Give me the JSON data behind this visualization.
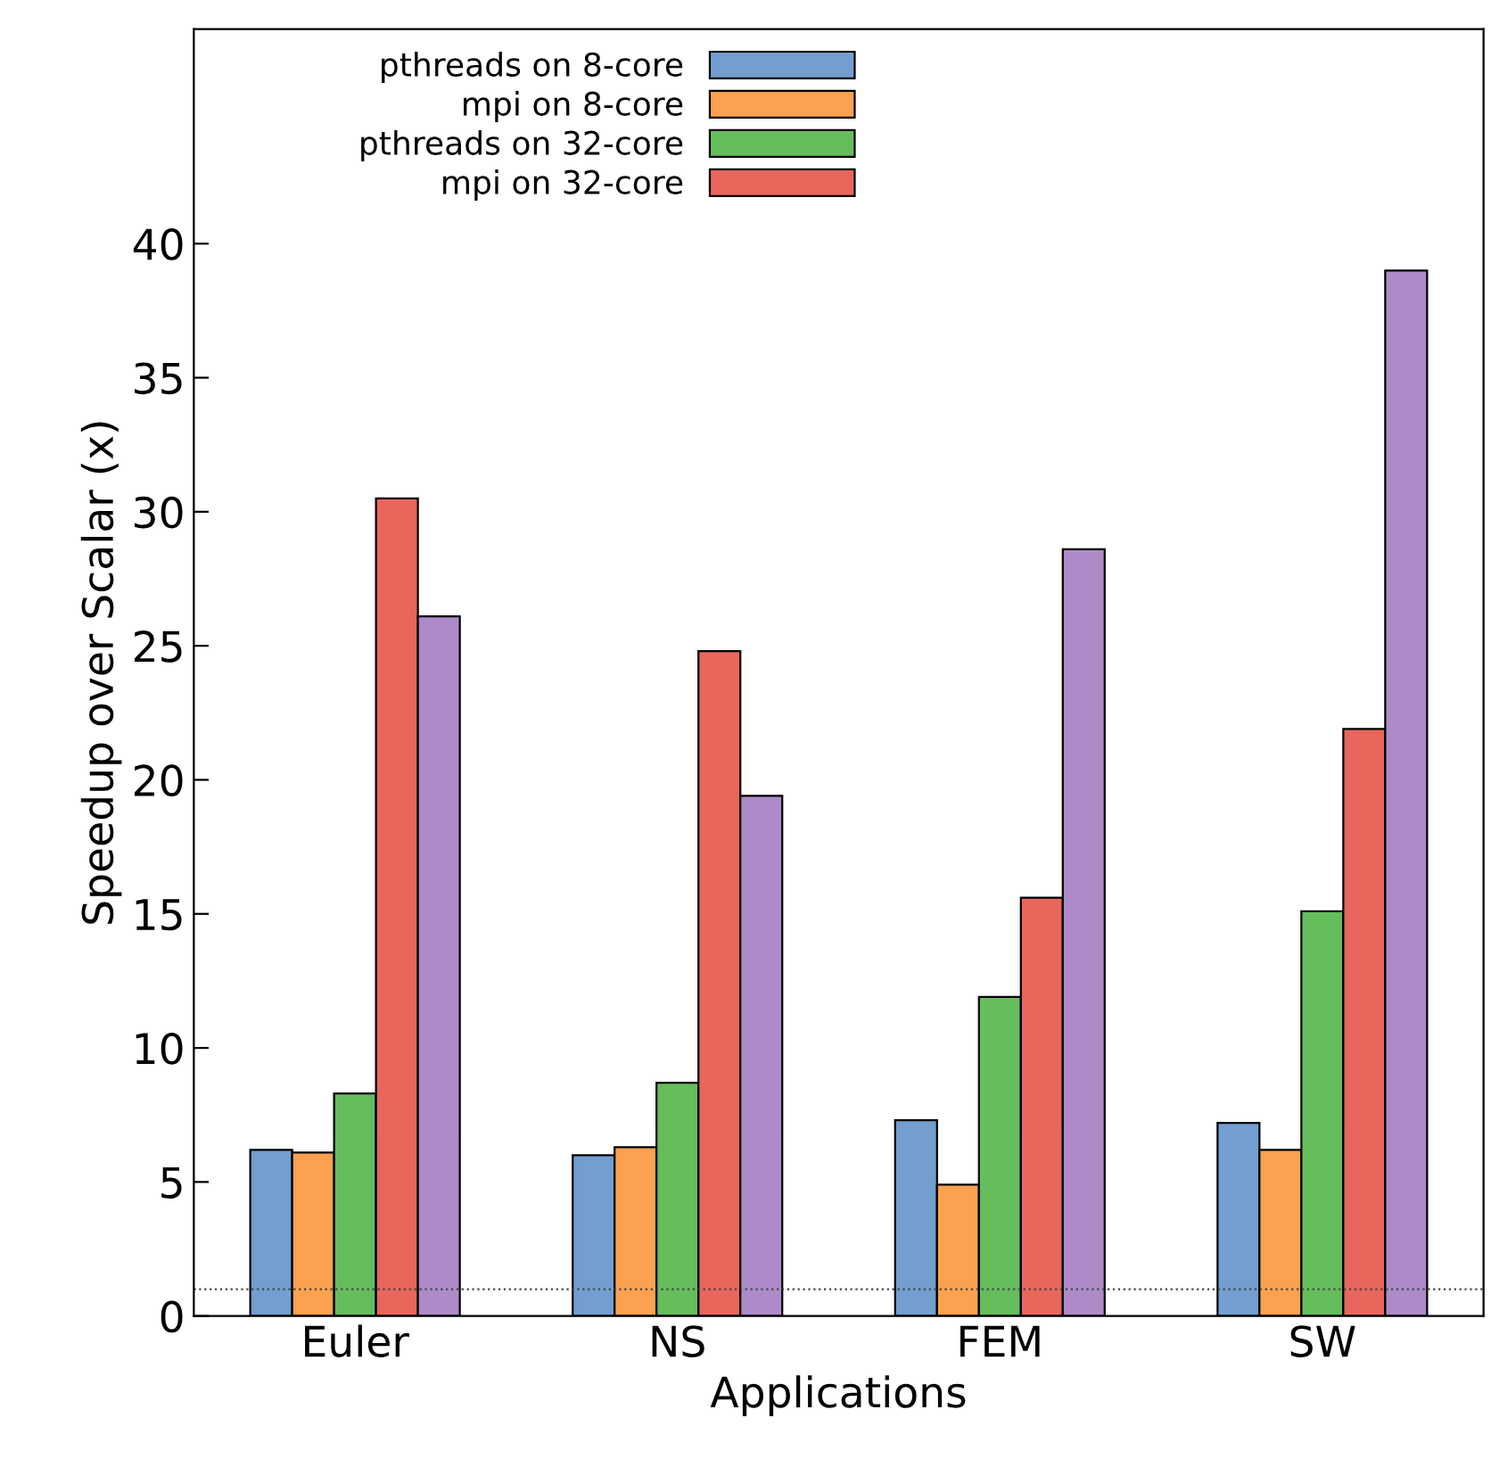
{
  "chart_data": {
    "type": "bar",
    "xlabel": "Applications",
    "ylabel": "Speedup over Scalar (x)",
    "categories": [
      "Euler",
      "NS",
      "FEM",
      "SW"
    ],
    "series": [
      {
        "name": "pthreads on 8-core",
        "color": "#729fcf",
        "values": [
          6.2,
          6.0,
          7.3,
          7.2
        ]
      },
      {
        "name": "mpi on 8-core",
        "color": "#fba14f",
        "values": [
          6.1,
          6.3,
          4.9,
          6.2
        ]
      },
      {
        "name": "pthreads on 32-core",
        "color": "#66bd5c",
        "values": [
          8.3,
          8.7,
          11.9,
          15.1
        ]
      },
      {
        "name": "mpi on 32-core",
        "color": "#e8665c",
        "values": [
          30.5,
          24.8,
          15.6,
          21.9
        ]
      },
      {
        "color": "#ad8bc8",
        "values": [
          26.1,
          19.4,
          28.6,
          39.0
        ]
      }
    ],
    "ylim": [
      0,
      48
    ],
    "yticks": [
      0,
      5,
      10,
      15,
      20,
      25,
      30,
      35,
      40
    ],
    "ref_lines": [
      {
        "axis": "y",
        "value": 1,
        "color": "#444444",
        "line_style": "dotted"
      }
    ],
    "grid": false,
    "legend": "top"
  }
}
